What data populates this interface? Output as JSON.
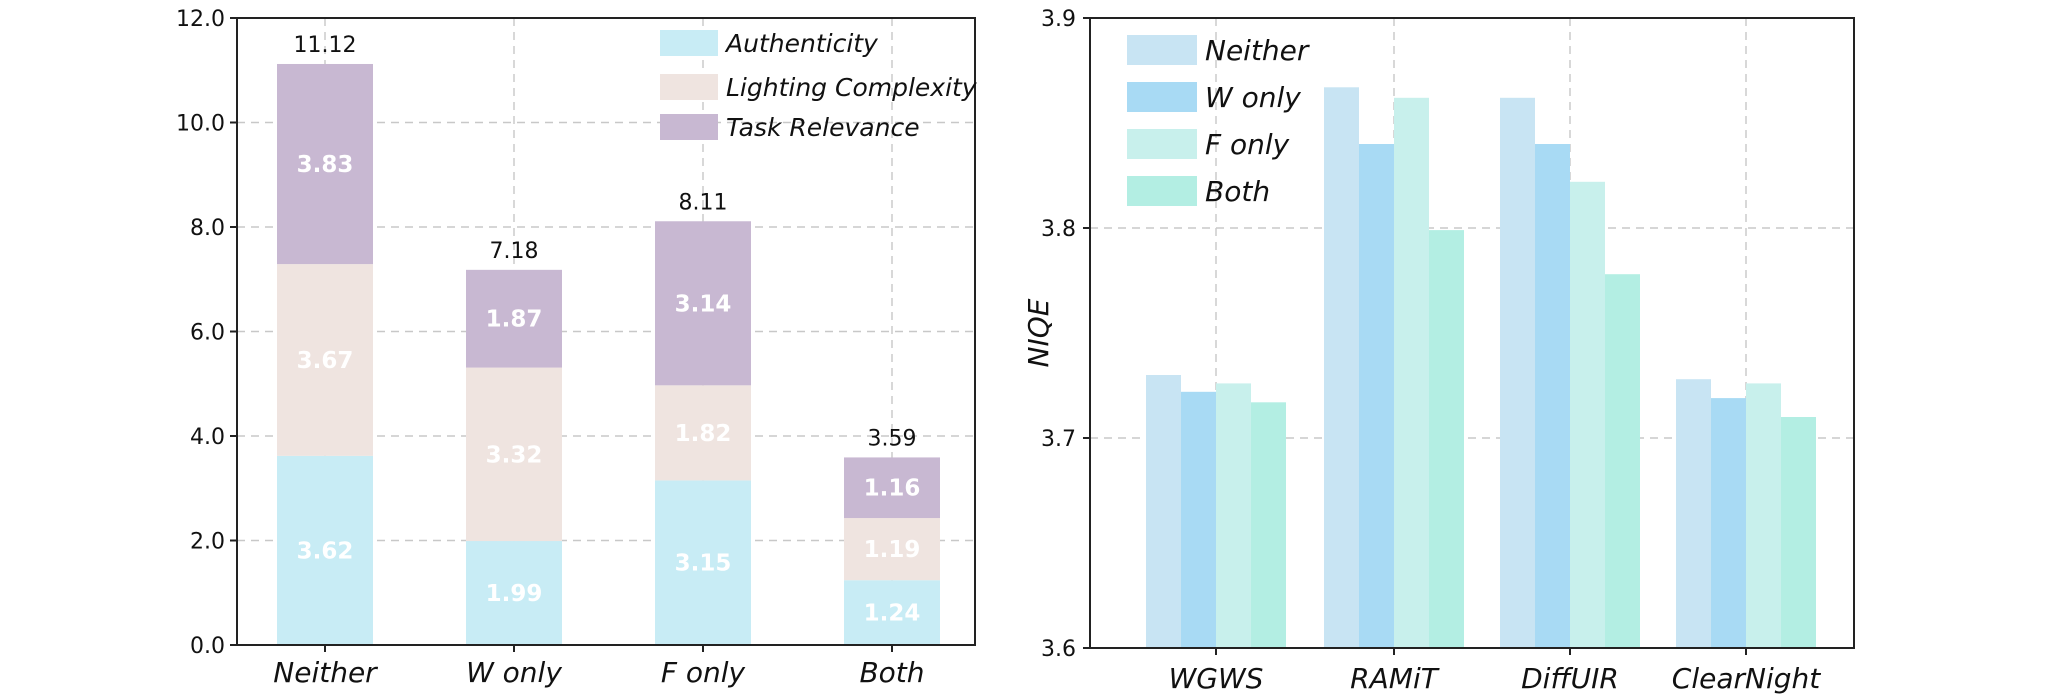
{
  "chart_data": [
    {
      "type": "bar",
      "stacked": true,
      "title": "",
      "xlabel": "",
      "ylabel": "",
      "ylim": [
        0,
        12
      ],
      "yticks": [
        "0.0",
        "2.0",
        "4.0",
        "6.0",
        "8.0",
        "10.0",
        "12.0"
      ],
      "grid": true,
      "legend_position": "top-right",
      "categories": [
        "Neither",
        "W only",
        "F only",
        "Both"
      ],
      "totals": [
        "11.12",
        "7.18",
        "8.11",
        "3.59"
      ],
      "series": [
        {
          "name": "Authenticity",
          "color": "#c8ecf5",
          "values": [
            3.62,
            1.99,
            3.15,
            1.24
          ],
          "labels": [
            "3.62",
            "1.99",
            "3.15",
            "1.24"
          ]
        },
        {
          "name": "Lighting Complexity",
          "color": "#efe4e0",
          "values": [
            3.67,
            3.32,
            1.82,
            1.19
          ],
          "labels": [
            "3.67",
            "3.32",
            "1.82",
            "1.19"
          ]
        },
        {
          "name": "Task Relevance",
          "color": "#c8b8d2",
          "values": [
            3.83,
            1.87,
            3.14,
            1.16
          ],
          "labels": [
            "3.83",
            "1.87",
            "3.14",
            "1.16"
          ]
        }
      ]
    },
    {
      "type": "bar",
      "stacked": false,
      "title": "",
      "xlabel": "",
      "ylabel": "NIQE",
      "ylim": [
        3.6,
        3.9
      ],
      "yticks": [
        "3.6",
        "3.7",
        "3.8",
        "3.9"
      ],
      "grid": true,
      "legend_position": "top-left",
      "categories": [
        "WGWS",
        "RAMiT",
        "DiffUIR",
        "ClearNight"
      ],
      "series": [
        {
          "name": "Neither",
          "color": "#c8e4f3",
          "values": [
            3.73,
            3.867,
            3.862,
            3.728
          ]
        },
        {
          "name": "W only",
          "color": "#a8daf4",
          "values": [
            3.722,
            3.84,
            3.84,
            3.719
          ]
        },
        {
          "name": "F  only",
          "color": "#c8f0ec",
          "values": [
            3.726,
            3.862,
            3.822,
            3.726
          ]
        },
        {
          "name": "Both",
          "color": "#b3eee3",
          "values": [
            3.717,
            3.799,
            3.778,
            3.71
          ]
        }
      ]
    }
  ]
}
